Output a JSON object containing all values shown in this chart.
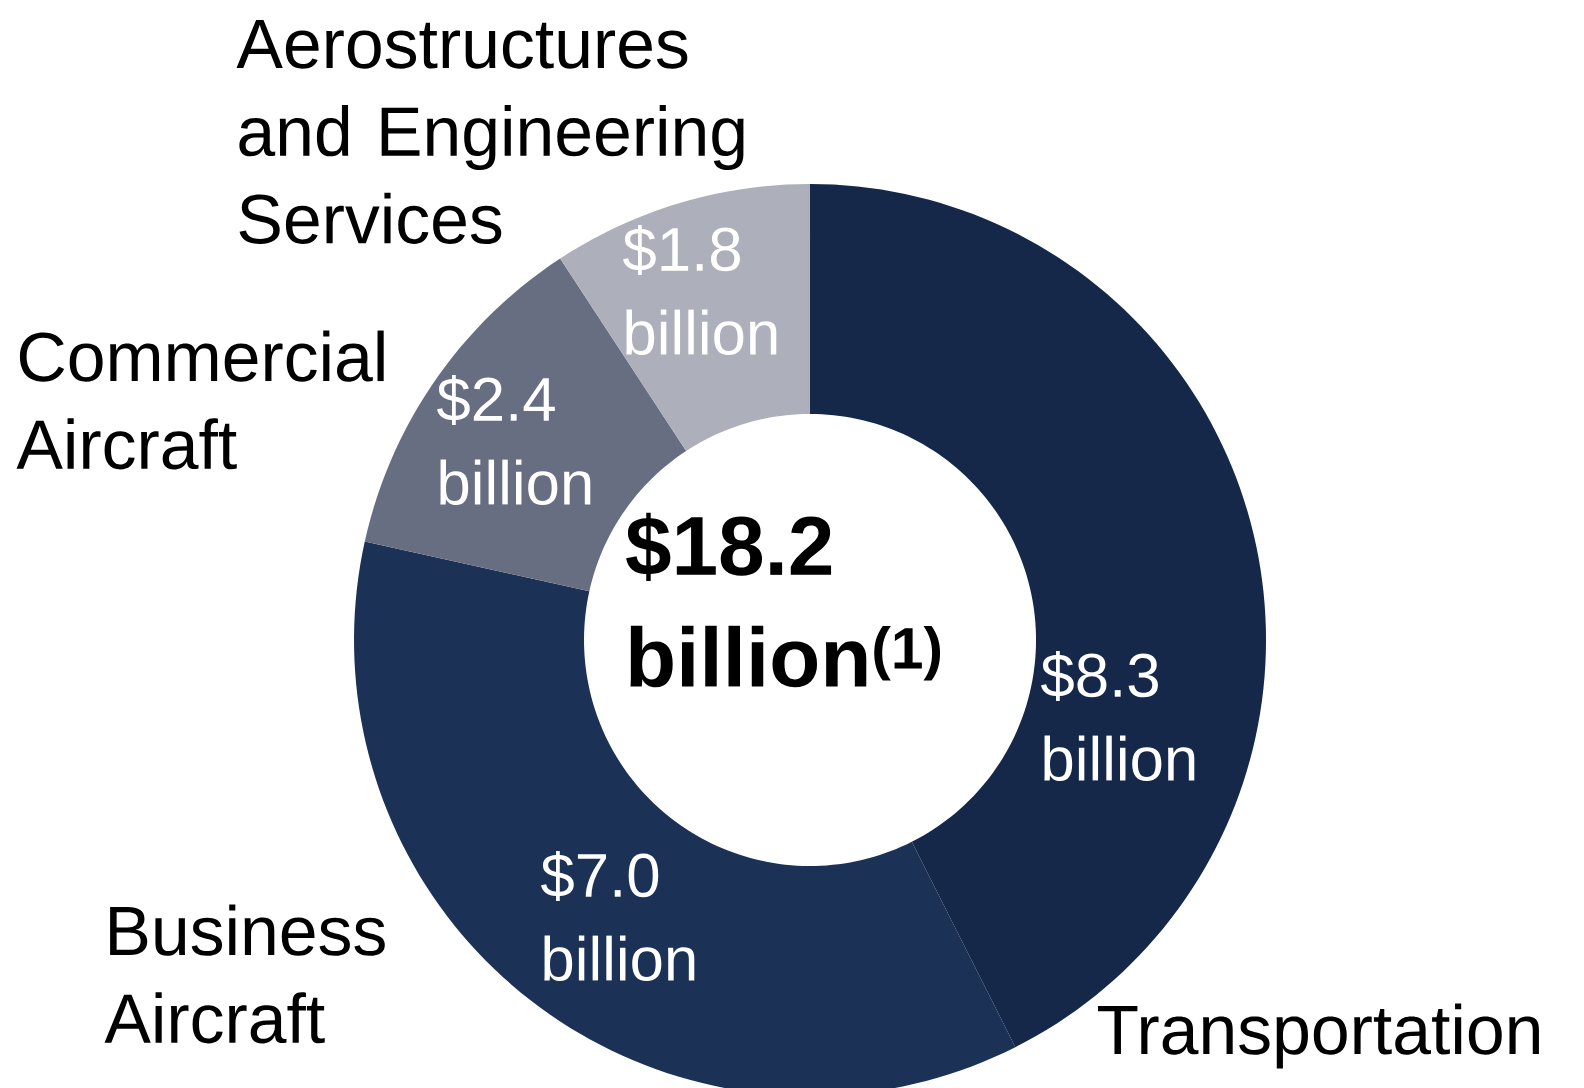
{
  "chart_data": {
    "type": "donut",
    "title": "$18.2 billion$^{(1)}$",
    "categories": [
      "Transportation",
      "Business Aircraft",
      "Commercial Aircraft",
      "Aerostructures and Engineering Services"
    ],
    "values": [
      8.3,
      7.0,
      2.4,
      1.8
    ],
    "value_labels": [
      "$8.3 billion",
      "$7.0 billion",
      "$2.4 billion",
      "$1.8 billion"
    ],
    "colors": [
      "#152849",
      "#1b3156",
      "#676e82",
      "#adb0ba"
    ]
  }
}
